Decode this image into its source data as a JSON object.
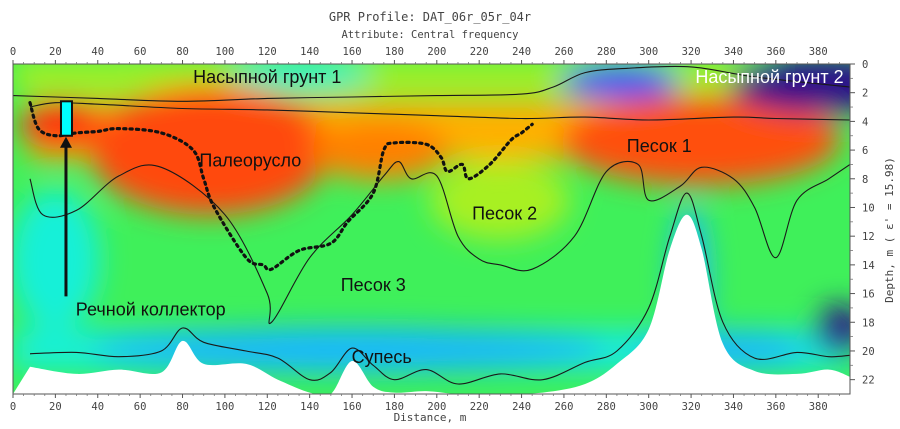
{
  "chart_data": {
    "type": "heatmap",
    "title": "GPR Profile: DAT_06r_05r_04r",
    "subtitle": "Attribute:  Central frequency",
    "xlabel": "Distance, m",
    "ylabel": "Depth, m ( ε' = 15.98)",
    "xlim": [
      0,
      395
    ],
    "ylim": [
      0,
      23
    ],
    "x_ticks": [
      "0",
      "20",
      "40",
      "60",
      "80",
      "100",
      "120",
      "140",
      "160",
      "180",
      "200",
      "220",
      "240",
      "260",
      "280",
      "300",
      "320",
      "340",
      "360",
      "380"
    ],
    "y_ticks": [
      "0",
      "2",
      "4",
      "6",
      "8",
      "10",
      "12",
      "14",
      "16",
      "18",
      "20",
      "22"
    ],
    "colormap": [
      "#2a0a8a",
      "#1f3cff",
      "#17b8ff",
      "#19f0d8",
      "#3ff05a",
      "#a8f020",
      "#ffe800",
      "#ff9000",
      "#ff3010"
    ],
    "layer_labels": [
      {
        "text": "Насыпной грунт 1",
        "x": 120,
        "y": 1.0
      },
      {
        "text": "Насыпной грунт 2",
        "x": 357,
        "y": 1.0
      },
      {
        "text": "Палеорусло",
        "x": 112,
        "y": 6.8
      },
      {
        "text": "Песок 1",
        "x": 305,
        "y": 5.8
      },
      {
        "text": "Песок 2",
        "x": 232,
        "y": 10.5
      },
      {
        "text": "Песок 3",
        "x": 170,
        "y": 15.5
      },
      {
        "text": "Супесь",
        "x": 174,
        "y": 20.5
      },
      {
        "text": "Речной коллектор",
        "x": 65,
        "y": 17.2
      }
    ],
    "boundaries": [
      {
        "name": "",
        "points": [
          [
            0,
            2.2
          ],
          [
            40,
            2.4
          ],
          [
            80,
            2.6
          ],
          [
            120,
            2.4
          ],
          [
            160,
            2.3
          ],
          [
            200,
            2.2
          ],
          [
            240,
            2.1
          ],
          [
            255,
            1.6
          ],
          [
            270,
            0.6
          ],
          [
            290,
            0.3
          ],
          [
            320,
            0.2
          ],
          [
            350,
            0.9
          ],
          [
            395,
            1.6
          ]
        ]
      },
      {
        "name": "",
        "points": [
          [
            8,
            3.0
          ],
          [
            20,
            2.7
          ],
          [
            40,
            2.8
          ],
          [
            80,
            3.1
          ],
          [
            120,
            3.2
          ],
          [
            160,
            3.4
          ],
          [
            200,
            3.6
          ],
          [
            240,
            3.8
          ],
          [
            270,
            3.7
          ],
          [
            300,
            3.9
          ],
          [
            340,
            3.7
          ],
          [
            360,
            3.8
          ],
          [
            395,
            3.9
          ]
        ]
      },
      {
        "name": "",
        "points": [
          [
            8,
            8.0
          ],
          [
            14,
            10.5
          ],
          [
            30,
            10.2
          ],
          [
            50,
            7.8
          ],
          [
            70,
            7.2
          ],
          [
            100,
            10.5
          ],
          [
            120,
            16.0
          ],
          [
            122,
            18.0
          ],
          [
            140,
            13.5
          ],
          [
            160,
            10.5
          ],
          [
            175,
            7.8
          ],
          [
            182,
            6.8
          ],
          [
            188,
            8.0
          ],
          [
            200,
            7.8
          ],
          [
            210,
            12.0
          ],
          [
            220,
            13.6
          ],
          [
            230,
            14.0
          ],
          [
            245,
            14.3
          ],
          [
            265,
            12.0
          ],
          [
            280,
            7.5
          ],
          [
            295,
            7.0
          ],
          [
            300,
            9.5
          ],
          [
            315,
            8.5
          ],
          [
            325,
            7.2
          ],
          [
            340,
            8.0
          ],
          [
            350,
            10.0
          ],
          [
            360,
            13.5
          ],
          [
            370,
            9.5
          ],
          [
            385,
            8.0
          ],
          [
            395,
            7.0
          ]
        ]
      },
      {
        "name": "",
        "points": [
          [
            8,
            20.2
          ],
          [
            30,
            20.1
          ],
          [
            50,
            20.4
          ],
          [
            70,
            20.0
          ],
          [
            80,
            18.4
          ],
          [
            90,
            19.4
          ],
          [
            110,
            20.0
          ],
          [
            125,
            20.5
          ],
          [
            140,
            22.0
          ],
          [
            150,
            21.5
          ],
          [
            160,
            19.8
          ],
          [
            170,
            21.0
          ],
          [
            180,
            22.0
          ],
          [
            195,
            21.3
          ],
          [
            210,
            22.3
          ],
          [
            230,
            21.6
          ],
          [
            250,
            22.0
          ],
          [
            270,
            20.8
          ],
          [
            285,
            20.0
          ],
          [
            300,
            17.0
          ],
          [
            310,
            12.0
          ],
          [
            318,
            9.0
          ],
          [
            325,
            12.0
          ],
          [
            335,
            18.0
          ],
          [
            350,
            20.5
          ],
          [
            370,
            20.1
          ],
          [
            385,
            20.4
          ],
          [
            395,
            20.3
          ]
        ]
      }
    ],
    "paleochannel_outline": [
      [
        8,
        2.7
      ],
      [
        12,
        4.5
      ],
      [
        20,
        5.0
      ],
      [
        30,
        4.8
      ],
      [
        40,
        4.7
      ],
      [
        50,
        4.5
      ],
      [
        70,
        4.8
      ],
      [
        85,
        6.0
      ],
      [
        90,
        8.0
      ],
      [
        95,
        10.0
      ],
      [
        110,
        13.5
      ],
      [
        118,
        14.0
      ],
      [
        122,
        14.3
      ],
      [
        135,
        13.0
      ],
      [
        150,
        12.5
      ],
      [
        158,
        11.0
      ],
      [
        170,
        9.0
      ],
      [
        175,
        6.0
      ],
      [
        180,
        5.5
      ],
      [
        195,
        5.6
      ],
      [
        202,
        6.5
      ],
      [
        205,
        7.5
      ],
      [
        212,
        7.0
      ],
      [
        215,
        8.0
      ],
      [
        225,
        7.0
      ],
      [
        235,
        5.3
      ],
      [
        240,
        4.8
      ],
      [
        245,
        4.2
      ]
    ],
    "collector_marker": {
      "x": 25,
      "depth_top": 2.6,
      "depth_bottom": 5.0
    }
  }
}
